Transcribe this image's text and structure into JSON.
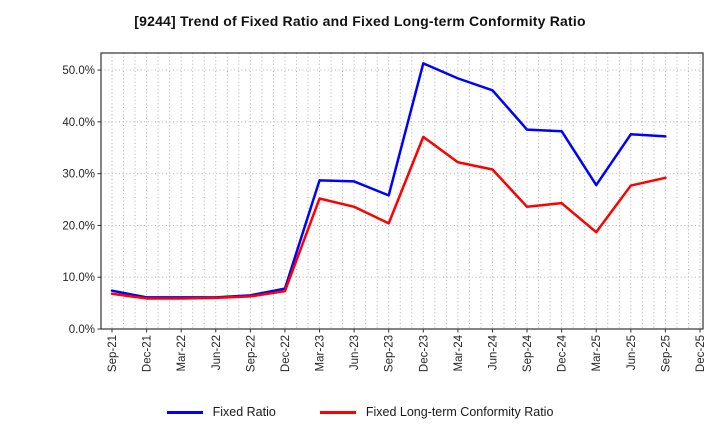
{
  "chart_data": {
    "type": "line",
    "title": "[9244]  Trend of Fixed Ratio and Fixed Long-term Conformity Ratio",
    "categories": [
      "Sep-21",
      "Dec-21",
      "Mar-22",
      "Jun-22",
      "Sep-22",
      "Dec-22",
      "Mar-23",
      "Jun-23",
      "Sep-23",
      "Dec-23",
      "Mar-24",
      "Jun-24",
      "Sep-24",
      "Dec-24",
      "Mar-25",
      "Jun-25",
      "Sep-25",
      "Dec-25"
    ],
    "series": [
      {
        "name": "Fixed Ratio",
        "color": "#0000ff",
        "values": [
          7.4,
          6.1,
          6.1,
          6.1,
          6.5,
          7.8,
          28.7,
          28.5,
          25.8,
          51.3,
          48.4,
          46.1,
          38.5,
          38.2,
          27.8,
          37.6,
          37.2,
          null
        ]
      },
      {
        "name": "Fixed Long-term Conformity Ratio",
        "color": "#ff0000",
        "values": [
          6.8,
          5.9,
          5.9,
          6.0,
          6.3,
          7.3,
          25.2,
          23.6,
          20.4,
          37.1,
          32.2,
          30.8,
          23.6,
          24.3,
          18.7,
          27.7,
          29.2,
          null
        ]
      }
    ],
    "xlabel": "",
    "ylabel": "",
    "yticks": [
      0,
      10,
      20,
      30,
      40,
      50
    ],
    "ytick_suffix": "%",
    "ylim": [
      0,
      53.3
    ],
    "grid": true,
    "minor_vertical_grid_per_interval": 3,
    "legend_position": "bottom"
  },
  "colors": {
    "background": "#ffffff",
    "grid": "#a9a9a9",
    "axis": "#333333",
    "text": "#262626"
  }
}
